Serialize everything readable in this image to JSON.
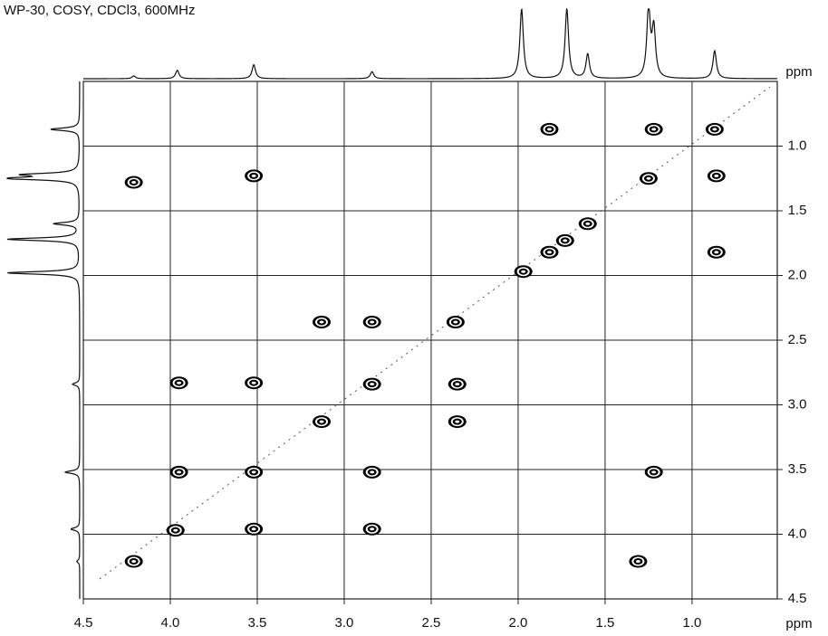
{
  "chart_data": {
    "type": "scatter",
    "title": "WP-30, COSY, CDCl3, 600MHz",
    "x_axis_label": "ppm",
    "y_axis_label": "ppm",
    "xlim": [
      4.5,
      0.51
    ],
    "ylim": [
      0.5,
      4.5
    ],
    "xticks": [
      4.5,
      {
        "value": 4,
        "label": "4.0"
      },
      3.5,
      {
        "value": 3,
        "label": "3.0"
      },
      2.5,
      {
        "value": 2,
        "label": "2.0"
      },
      1.5,
      {
        "value": 1,
        "label": "1.0"
      }
    ],
    "yticks": [
      {
        "value": 1,
        "label": "1.0"
      },
      1.5,
      {
        "value": 2,
        "label": "2.0"
      },
      2.5,
      {
        "value": 3,
        "label": "3.0"
      },
      3.5,
      {
        "value": 4,
        "label": "4.0"
      },
      4.5
    ],
    "grid": true,
    "color": "#000000",
    "x": [
      4.21,
      3.97,
      3.52,
      3.13,
      2.84,
      2.36,
      1.97,
      1.82,
      1.73,
      1.6,
      1.25,
      0.87,
      1.82,
      1.22,
      0.86,
      4.21,
      3.52,
      0.86,
      3.13,
      2.84,
      3.95,
      3.52,
      2.35,
      2.35,
      3.95,
      2.84,
      1.22,
      3.52,
      2.84,
      1.31
    ],
    "y": [
      4.21,
      3.97,
      3.52,
      3.13,
      2.84,
      2.36,
      1.97,
      1.82,
      1.73,
      1.6,
      1.25,
      0.87,
      0.87,
      0.87,
      1.23,
      1.28,
      1.23,
      1.82,
      2.36,
      2.36,
      2.83,
      2.83,
      2.84,
      3.13,
      3.52,
      3.52,
      3.52,
      3.96,
      3.96,
      4.21
    ],
    "projection": {
      "ppm": [
        4.21,
        3.96,
        3.52,
        2.84,
        1.98,
        1.72,
        1.6,
        1.25,
        1.22,
        0.87
      ],
      "heights": [
        4,
        12,
        20,
        10,
        100,
        100,
        35,
        100,
        70,
        40
      ]
    }
  }
}
